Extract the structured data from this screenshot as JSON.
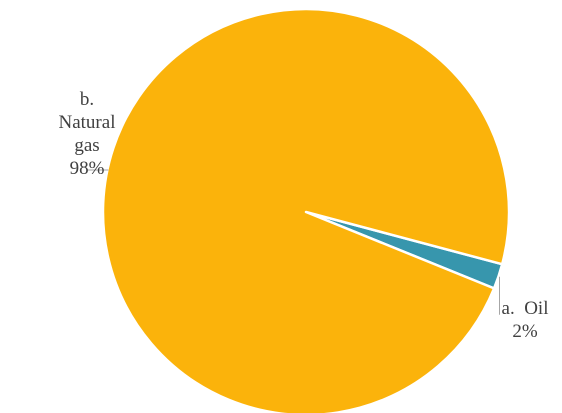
{
  "chart_data": {
    "type": "pie",
    "categories": [
      "a. Oil",
      "b. Natural gas"
    ],
    "values": [
      2,
      98
    ],
    "colors": [
      "#3796ad",
      "#fbb30b"
    ],
    "start_angle_deg": 14.9,
    "labels": [
      {
        "category_lines": [
          "a.",
          "Oil"
        ],
        "percent": "2%"
      },
      {
        "category_lines": [
          "b.",
          "Natural",
          "gas"
        ],
        "percent": "98%"
      }
    ],
    "title": "",
    "legend": "none"
  }
}
